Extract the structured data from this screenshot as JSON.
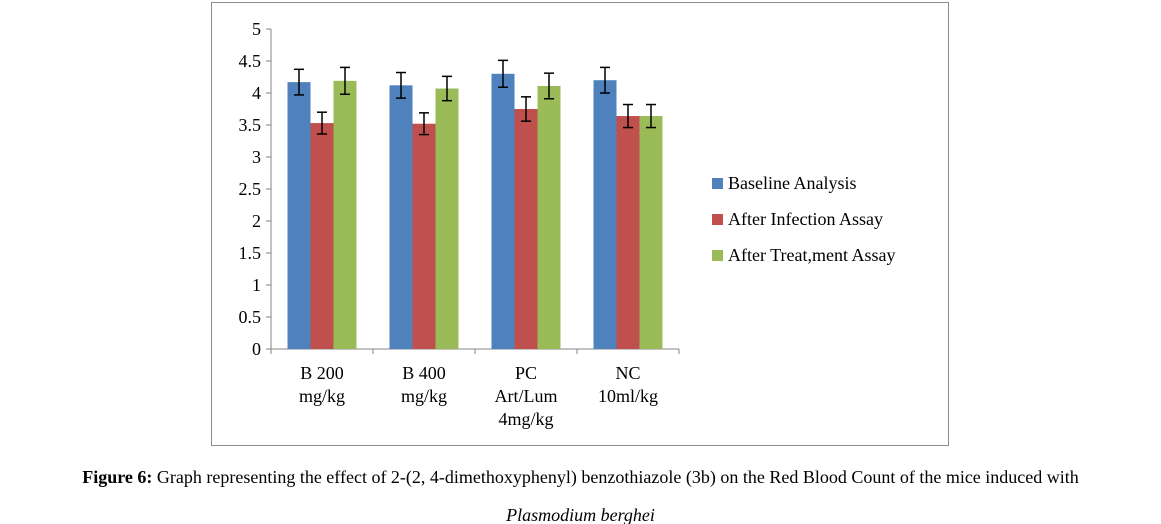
{
  "chart_data": {
    "type": "bar",
    "categories": [
      [
        "B 200",
        "mg/kg"
      ],
      [
        "B 400",
        "mg/kg"
      ],
      [
        "PC",
        "Art/Lum",
        "4mg/kg"
      ],
      [
        "NC",
        "10ml/kg"
      ]
    ],
    "series": [
      {
        "name": "Baseline Analysis",
        "color": "#4F81BD",
        "values": [
          4.17,
          4.12,
          4.3,
          4.2
        ],
        "errors": [
          0.2,
          0.2,
          0.21,
          0.2
        ]
      },
      {
        "name": "After Infection Assay",
        "color": "#C0504D",
        "values": [
          3.53,
          3.52,
          3.75,
          3.64
        ],
        "errors": [
          0.17,
          0.17,
          0.19,
          0.18
        ]
      },
      {
        "name": "After Treat,ment Assay",
        "color": "#9BBB59",
        "values": [
          4.19,
          4.07,
          4.11,
          3.64
        ],
        "errors": [
          0.21,
          0.19,
          0.2,
          0.18
        ]
      }
    ],
    "ylim": [
      0,
      5
    ],
    "yticks": [
      "0",
      "0.5",
      "1",
      "1.5",
      "2",
      "2.5",
      "3",
      "3.5",
      "4",
      "4.5",
      "5"
    ],
    "ytick_values": [
      0,
      0.5,
      1,
      1.5,
      2,
      2.5,
      3,
      3.5,
      4,
      4.5,
      5
    ],
    "grid": false,
    "legend_position": "right",
    "error_bars": true
  },
  "caption": {
    "label": "Figure 6:",
    "text": " Graph representing the effect of 2-(2, 4-dimethoxyphenyl) benzothiazole (3b) on the Red Blood Count of the mice induced with",
    "line2": "Plasmodium berghei"
  }
}
